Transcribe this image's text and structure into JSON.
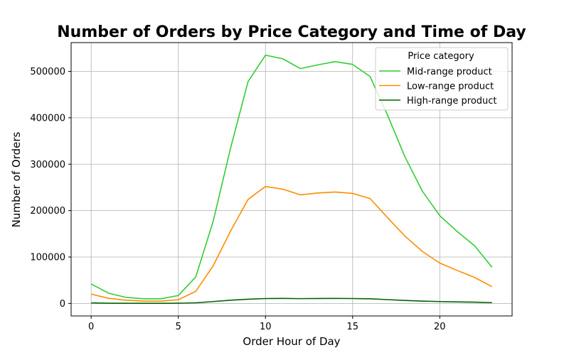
{
  "chart_data": {
    "type": "line",
    "title": "Number of Orders by Price Category and Time of Day",
    "xlabel": "Order Hour of Day",
    "ylabel": "Number of Orders",
    "xlim": [
      -1.15,
      24.15
    ],
    "ylim": [
      -27000,
      562000
    ],
    "x_ticks": [
      0,
      5,
      10,
      15,
      20
    ],
    "y_ticks": [
      0,
      100000,
      200000,
      300000,
      400000,
      500000
    ],
    "grid": true,
    "legend": {
      "title": "Price category",
      "placement": "top-right"
    },
    "x": [
      0,
      1,
      2,
      3,
      4,
      5,
      6,
      7,
      8,
      9,
      10,
      11,
      12,
      13,
      14,
      15,
      16,
      17,
      18,
      19,
      20,
      21,
      22,
      23
    ],
    "series": [
      {
        "name": "Mid-range product",
        "color": "#33cc33",
        "values": [
          42000,
          22000,
          13000,
          10000,
          10000,
          17000,
          57000,
          177000,
          335000,
          478000,
          535000,
          527000,
          506000,
          514000,
          521000,
          515000,
          489000,
          406000,
          316000,
          242000,
          189000,
          155000,
          124000,
          78000
        ]
      },
      {
        "name": "Low-range product",
        "color": "#ff8c00",
        "values": [
          20000,
          11000,
          7000,
          5000,
          5000,
          8000,
          26000,
          81000,
          156000,
          224000,
          252000,
          246000,
          234000,
          238000,
          240000,
          237000,
          226000,
          185000,
          145000,
          112000,
          87000,
          71000,
          56000,
          36000
        ]
      },
      {
        "name": "High-range product",
        "color": "#006400",
        "values": [
          1000,
          500,
          300,
          200,
          200,
          400,
          1300,
          4000,
          7000,
          9000,
          10500,
          10800,
          10300,
          10600,
          10700,
          10500,
          10000,
          8200,
          6400,
          5000,
          4000,
          3300,
          2700,
          1700
        ]
      }
    ]
  }
}
